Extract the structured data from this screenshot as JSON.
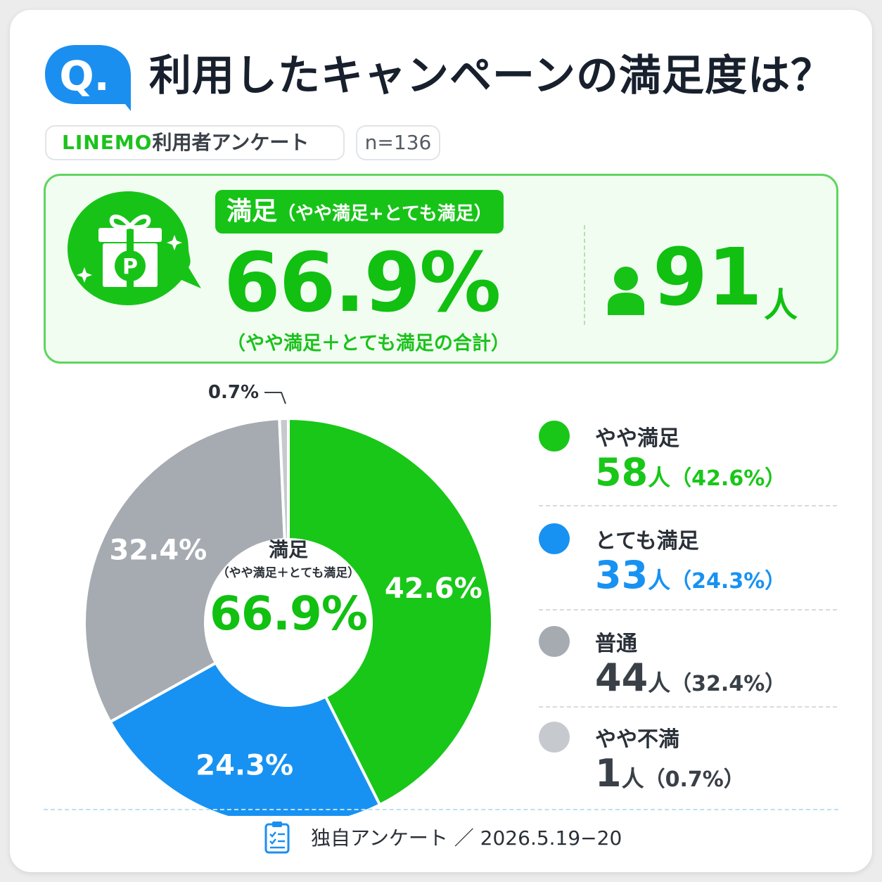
{
  "header": {
    "badge": "Q.",
    "title": "利用したキャンペーンの満足度は？"
  },
  "tags": {
    "brand": "LINEMO",
    "survey_rest": "利用者アンケート",
    "n_label": "n=136"
  },
  "summary": {
    "pill_main": "満足",
    "pill_sub": "（やや満足+とても満足）",
    "percent": "66.9%",
    "note": "（やや満足＋とても満足の合計）",
    "count": "91",
    "count_unit": "人",
    "icon": "gift-p-icon"
  },
  "center": {
    "title": "満足",
    "sub": "（やや満足＋とても満足）",
    "percent": "66.9%"
  },
  "legend": [
    {
      "label": "やや満足",
      "count": "58",
      "unit": "人",
      "pct": "（42.6%）",
      "color": "#18c718"
    },
    {
      "label": "とても満足",
      "count": "33",
      "unit": "人",
      "pct": "（24.3%）",
      "color": "#1792f2"
    },
    {
      "label": "普通",
      "count": "44",
      "unit": "人",
      "pct": "（32.4%）",
      "color": "#a6abb2"
    },
    {
      "label": "やや不満",
      "count": "1",
      "unit": "人",
      "pct": "（0.7%）",
      "color": "#c6cacf"
    }
  ],
  "footer": {
    "text": "独自アンケート ／ 2026.5.19−20",
    "icon": "clipboard-icon"
  },
  "colors": {
    "green": "#18c718",
    "blue": "#1792f2",
    "gray": "#a6abb2",
    "light_gray": "#c6cacf",
    "q_blue": "#1b8ff0"
  },
  "chart_data": {
    "type": "pie",
    "categories": [
      "やや満足",
      "とても満足",
      "普通",
      "やや不満"
    ],
    "values": [
      42.6,
      24.3,
      32.4,
      0.7
    ],
    "counts": [
      58,
      33,
      44,
      1
    ],
    "labels": [
      "42.6%",
      "24.3%",
      "32.4%",
      "0.7%"
    ],
    "colors": [
      "#18c718",
      "#1792f2",
      "#a6abb2",
      "#c6cacf"
    ],
    "label_colors": [
      "#ffffff",
      "#ffffff",
      "#ffffff",
      "#2a3038"
    ]
  }
}
